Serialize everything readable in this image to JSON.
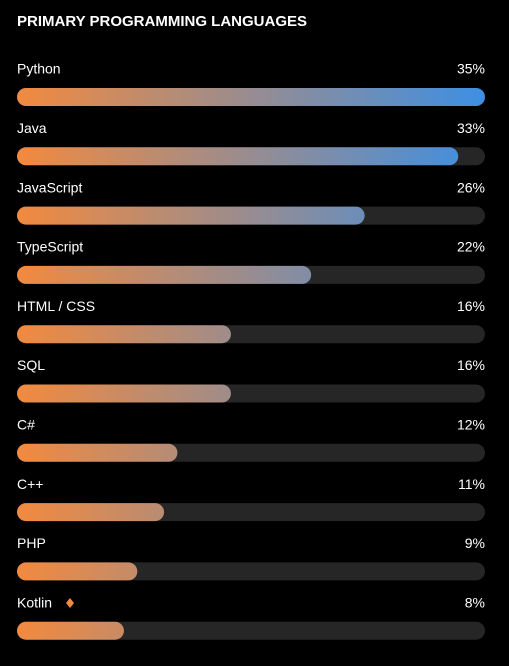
{
  "chart_data": {
    "type": "bar",
    "orientation": "horizontal",
    "title": "PRIMARY PROGRAMMING LANGUAGES",
    "categories": [
      "Python",
      "Java",
      "JavaScript",
      "TypeScript",
      "HTML / CSS",
      "SQL",
      "C#",
      "C++",
      "PHP",
      "Kotlin"
    ],
    "values": [
      35,
      33,
      26,
      22,
      16,
      16,
      12,
      11,
      9,
      8
    ],
    "value_labels": [
      "35%",
      "33%",
      "26%",
      "22%",
      "16%",
      "16%",
      "12%",
      "11%",
      "9%",
      "8%"
    ],
    "xlim": [
      0,
      35
    ],
    "colors": [
      "#f28a3f",
      "#3d8fe3"
    ],
    "track_color": "#262626"
  }
}
